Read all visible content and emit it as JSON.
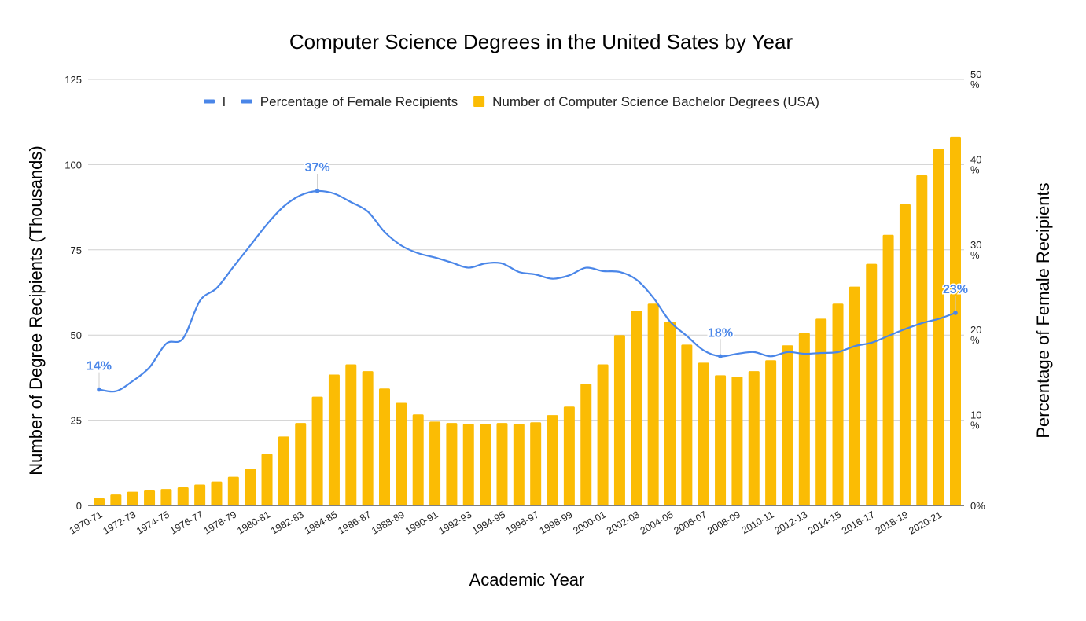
{
  "chart_data": {
    "type": "bar+line",
    "title": "Computer Science Degrees in the United Sates by Year",
    "xlabel": "Academic Year",
    "ylabel": "Number of Degree Recipients (Thousands)",
    "y2label": "Percentage of Female Recipients",
    "ylim": [
      0,
      125
    ],
    "y2lim": [
      0,
      50
    ],
    "yticks": [
      "0",
      "25",
      "50",
      "75",
      "100",
      "125"
    ],
    "y2ticks": [
      {
        "value": "0%",
        "unit": ""
      },
      {
        "value": "10",
        "unit": "%"
      },
      {
        "value": "20",
        "unit": "%"
      },
      {
        "value": "30",
        "unit": "%"
      },
      {
        "value": "40",
        "unit": "%"
      },
      {
        "value": "50",
        "unit": "%"
      }
    ],
    "grid": true,
    "legend_position": "top",
    "legend": [
      {
        "label": "l",
        "marker": "line",
        "color": "#4a86e8"
      },
      {
        "label": "Percentage of Female Recipients",
        "marker": "line",
        "color": "#4a86e8"
      },
      {
        "label": "Number of Computer Science Bachelor Degrees (USA)",
        "marker": "square",
        "color": "#fbbc04"
      }
    ],
    "categories": [
      "1970-71",
      "1971-72",
      "1972-73",
      "1973-74",
      "1974-75",
      "1975-76",
      "1976-77",
      "1977-78",
      "1978-79",
      "1979-80",
      "1980-81",
      "1981-82",
      "1982-83",
      "1983-84",
      "1984-85",
      "1985-86",
      "1986-87",
      "1987-88",
      "1988-89",
      "1989-90",
      "1990-91",
      "1991-92",
      "1992-93",
      "1993-94",
      "1994-95",
      "1995-96",
      "1996-97",
      "1997-98",
      "1998-99",
      "1999-2000",
      "2000-01",
      "2001-02",
      "2002-03",
      "2003-04",
      "2004-05",
      "2005-06",
      "2006-07",
      "2007-08",
      "2008-09",
      "2009-10",
      "2010-11",
      "2011-12",
      "2012-13",
      "2013-14",
      "2014-15",
      "2015-16",
      "2016-17",
      "2017-18",
      "2018-19",
      "2019-20",
      "2020-21",
      "2021-22"
    ],
    "shown_tick_labels": "every other category starting at 1970-71",
    "series": [
      {
        "name": "Number of Computer Science Bachelor Degrees (USA)",
        "type": "bar",
        "axis": "left",
        "color": "#fbbc04",
        "values": [
          2.1,
          3.2,
          4.0,
          4.6,
          4.8,
          5.3,
          6.1,
          7.0,
          8.4,
          10.8,
          15.1,
          20.2,
          24.2,
          31.9,
          38.4,
          41.4,
          39.4,
          34.3,
          30.1,
          26.7,
          24.6,
          24.2,
          23.9,
          23.9,
          24.2,
          23.9,
          24.4,
          26.5,
          29.0,
          35.7,
          41.4,
          50.0,
          57.1,
          59.2,
          53.9,
          47.2,
          41.9,
          38.2,
          37.8,
          39.4,
          42.6,
          47.0,
          50.6,
          54.8,
          59.2,
          64.2,
          70.9,
          79.4,
          88.4,
          96.9,
          104.5,
          108.2
        ]
      },
      {
        "name": "Percentage of Female Recipients",
        "type": "line",
        "axis": "right",
        "color": "#4a86e8",
        "values": [
          13.6,
          13.4,
          14.6,
          16.2,
          19.0,
          19.6,
          24.0,
          25.5,
          28.0,
          30.5,
          33.0,
          35.1,
          36.4,
          36.9,
          36.6,
          35.6,
          34.5,
          32.1,
          30.5,
          29.6,
          29.1,
          28.5,
          27.9,
          28.4,
          28.4,
          27.4,
          27.1,
          26.6,
          27.0,
          27.9,
          27.5,
          27.4,
          26.5,
          24.4,
          21.6,
          19.9,
          18.2,
          17.5,
          17.8,
          18.0,
          17.5,
          18.0,
          17.8,
          17.9,
          18.0,
          18.7,
          19.1,
          19.9,
          20.7,
          21.4,
          21.9,
          22.6
        ]
      }
    ],
    "annotations": [
      {
        "category_index": 0,
        "text": "14%"
      },
      {
        "category_index": 13,
        "text": "37%"
      },
      {
        "category_index": 37,
        "text": "18%"
      },
      {
        "category_index": 51,
        "text": "23%"
      }
    ]
  }
}
